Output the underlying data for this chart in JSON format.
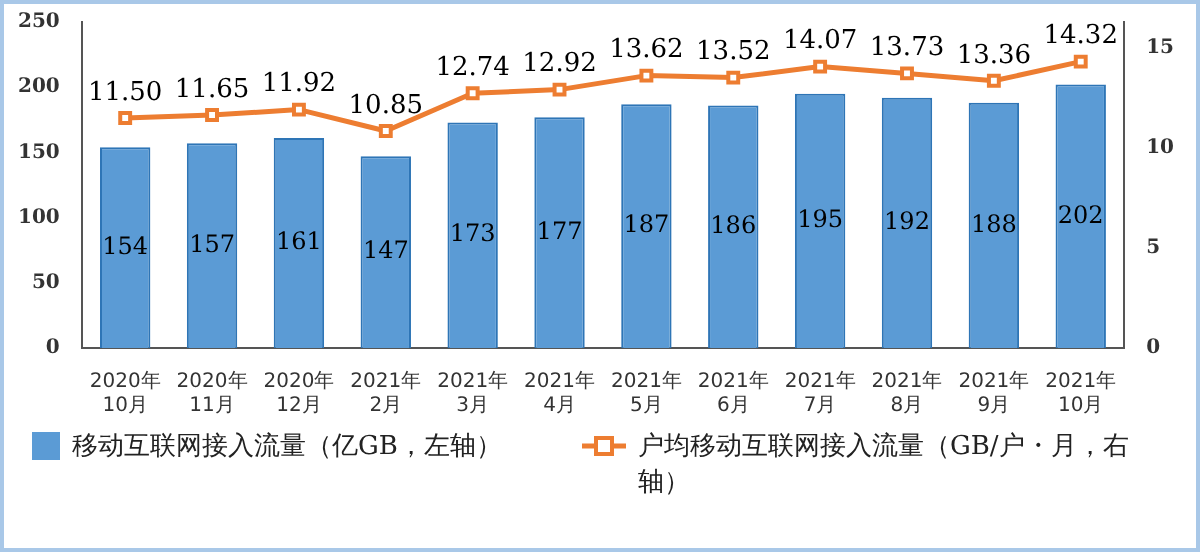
{
  "chart_data": {
    "type": "bar",
    "categories": [
      "2020年\n10月",
      "2020年\n11月",
      "2020年\n12月",
      "2021年\n2月",
      "2021年\n3月",
      "2021年\n4月",
      "2021年\n5月",
      "2021年\n6月",
      "2021年\n7月",
      "2021年\n8月",
      "2021年\n9月",
      "2021年\n10月"
    ],
    "series": [
      {
        "name": "移动互联网接入流量（亿GB，左轴）",
        "color": "#5b9bd5",
        "values": [
          154,
          157,
          161,
          147,
          173,
          177,
          187,
          186,
          195,
          192,
          188,
          202
        ]
      },
      {
        "name": "户均移动互联网接入流量（GB/户・月，右轴）",
        "type": "line",
        "axis": "y2",
        "color": "#ed7d31",
        "marker": "square",
        "values": [
          11.5,
          11.65,
          11.92,
          10.85,
          12.74,
          12.92,
          13.62,
          13.52,
          14.07,
          13.73,
          13.36,
          14.32
        ],
        "value_labels": [
          "11.50",
          "11.65",
          "11.92",
          "10.85",
          "12.74",
          "12.92",
          "13.62",
          "13.52",
          "14.07",
          "13.73",
          "13.36",
          "14.32"
        ]
      }
    ],
    "ylim": [
      0,
      250
    ],
    "yticks": [
      0,
      50,
      100,
      150,
      200,
      250
    ],
    "y2lim": [
      0,
      16.3
    ],
    "y2ticks": [
      0,
      5,
      10,
      15
    ],
    "data_labels": true,
    "grid": false,
    "legend": "bottom"
  }
}
